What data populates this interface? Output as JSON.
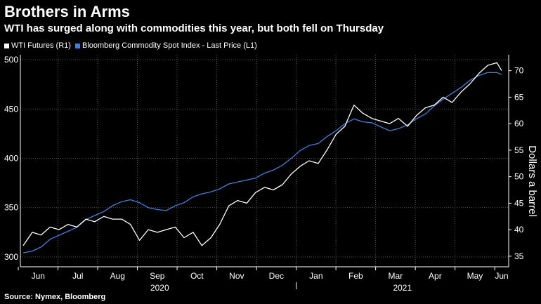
{
  "title": "Brothers in Arms",
  "subtitle": "WTI has surged along with commodities this year, but both fell on Thursday",
  "source": "Source: Nymex, Bloomberg",
  "colors": {
    "wti": "#ffffff",
    "bcom": "#3d7fe0",
    "grid": "#6a6a6a"
  },
  "chart_data": {
    "type": "line",
    "title": "Brothers in Arms",
    "subtitle": "WTI has surged along with commodities this year, but both fell on Thursday",
    "x_tick_labels": [
      "Jun",
      "Jul",
      "Aug",
      "Sep",
      "Oct",
      "Nov",
      "Dec",
      "Jan",
      "Feb",
      "Mar",
      "Apr",
      "May",
      "Jun"
    ],
    "year_labels": [
      "2020",
      "2021"
    ],
    "left_axis": {
      "ticks": [
        300,
        350,
        400,
        450,
        500
      ],
      "ylim": [
        290,
        505
      ]
    },
    "right_axis": {
      "label": "Dollars a barrel",
      "ticks": [
        35,
        40,
        45,
        50,
        55,
        60,
        65,
        70
      ],
      "ylim": [
        33,
        73
      ]
    },
    "series": [
      {
        "name": "WTI Futures (R1)",
        "axis": "right",
        "x_unit": "months since 2020-06-01",
        "x": [
          0.0,
          0.23,
          0.45,
          0.68,
          0.9,
          1.13,
          1.35,
          1.58,
          1.8,
          2.03,
          2.25,
          2.48,
          2.7,
          2.93,
          3.15,
          3.38,
          3.6,
          3.83,
          4.05,
          4.28,
          4.5,
          4.73,
          4.95,
          5.18,
          5.4,
          5.63,
          5.85,
          6.08,
          6.3,
          6.53,
          6.75,
          6.98,
          7.2,
          7.43,
          7.65,
          7.88,
          8.1,
          8.33,
          8.55,
          8.78,
          9.0,
          9.23,
          9.45,
          9.68,
          9.9,
          10.13,
          10.35,
          10.58,
          10.8,
          11.03,
          11.25,
          11.48,
          11.7,
          11.93,
          12.05
        ],
        "y": [
          37.0,
          39.5,
          39.0,
          40.5,
          40.0,
          41.0,
          40.5,
          42.0,
          41.5,
          42.5,
          42.0,
          42.0,
          41.0,
          38.0,
          40.0,
          39.5,
          40.0,
          40.5,
          38.5,
          39.5,
          37.0,
          38.5,
          41.0,
          44.5,
          45.5,
          45.0,
          47.0,
          48.0,
          47.5,
          48.5,
          50.5,
          52.0,
          53.0,
          52.5,
          55.0,
          58.0,
          59.5,
          63.5,
          62.0,
          61.0,
          60.5,
          60.0,
          61.0,
          59.5,
          61.5,
          63.0,
          63.5,
          65.0,
          64.0,
          66.0,
          67.5,
          69.5,
          71.0,
          71.5,
          70.0
        ]
      },
      {
        "name": "Bloomberg Commodity Spot Index - Last Price (L1)",
        "axis": "left",
        "x_unit": "months since 2020-06-01",
        "x": [
          0.0,
          0.23,
          0.45,
          0.68,
          0.9,
          1.13,
          1.35,
          1.58,
          1.8,
          2.03,
          2.25,
          2.48,
          2.7,
          2.93,
          3.15,
          3.38,
          3.6,
          3.83,
          4.05,
          4.28,
          4.5,
          4.73,
          4.95,
          5.18,
          5.4,
          5.63,
          5.85,
          6.08,
          6.3,
          6.53,
          6.75,
          6.98,
          7.2,
          7.43,
          7.65,
          7.88,
          8.1,
          8.33,
          8.55,
          8.78,
          9.0,
          9.23,
          9.45,
          9.68,
          9.9,
          10.13,
          10.35,
          10.58,
          10.8,
          11.03,
          11.25,
          11.48,
          11.7,
          11.93,
          12.05
        ],
        "y": [
          304,
          306,
          310,
          318,
          322,
          326,
          330,
          338,
          342,
          346,
          352,
          356,
          358,
          355,
          350,
          348,
          347,
          352,
          355,
          361,
          364,
          366,
          369,
          374,
          376,
          378,
          380,
          385,
          388,
          393,
          400,
          408,
          413,
          415,
          422,
          428,
          435,
          440,
          437,
          436,
          432,
          428,
          430,
          434,
          440,
          445,
          453,
          460,
          466,
          472,
          479,
          484,
          487,
          487,
          485
        ]
      }
    ],
    "grid": true,
    "legend": "top-left"
  }
}
